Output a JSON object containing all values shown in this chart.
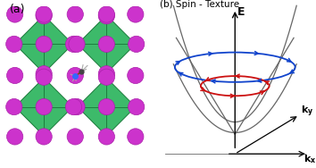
{
  "panel_a_label": "(a)",
  "panel_b_label": "(b) Spin - Texture",
  "bg_color": "#ffffff",
  "green_color": "#3dba6a",
  "green_edge": "#1a7a3a",
  "purple_color": "#cc33cc",
  "purple_edge": "#aa22aa",
  "axis_color": "#555555",
  "blue_color": "#1144cc",
  "red_color": "#cc1111",
  "E_label": "E",
  "kx_label": "k_x",
  "ky_label": "k_y",
  "cone_color": "#666666",
  "cone_lw": 0.9,
  "parabola_lw": 0.9
}
